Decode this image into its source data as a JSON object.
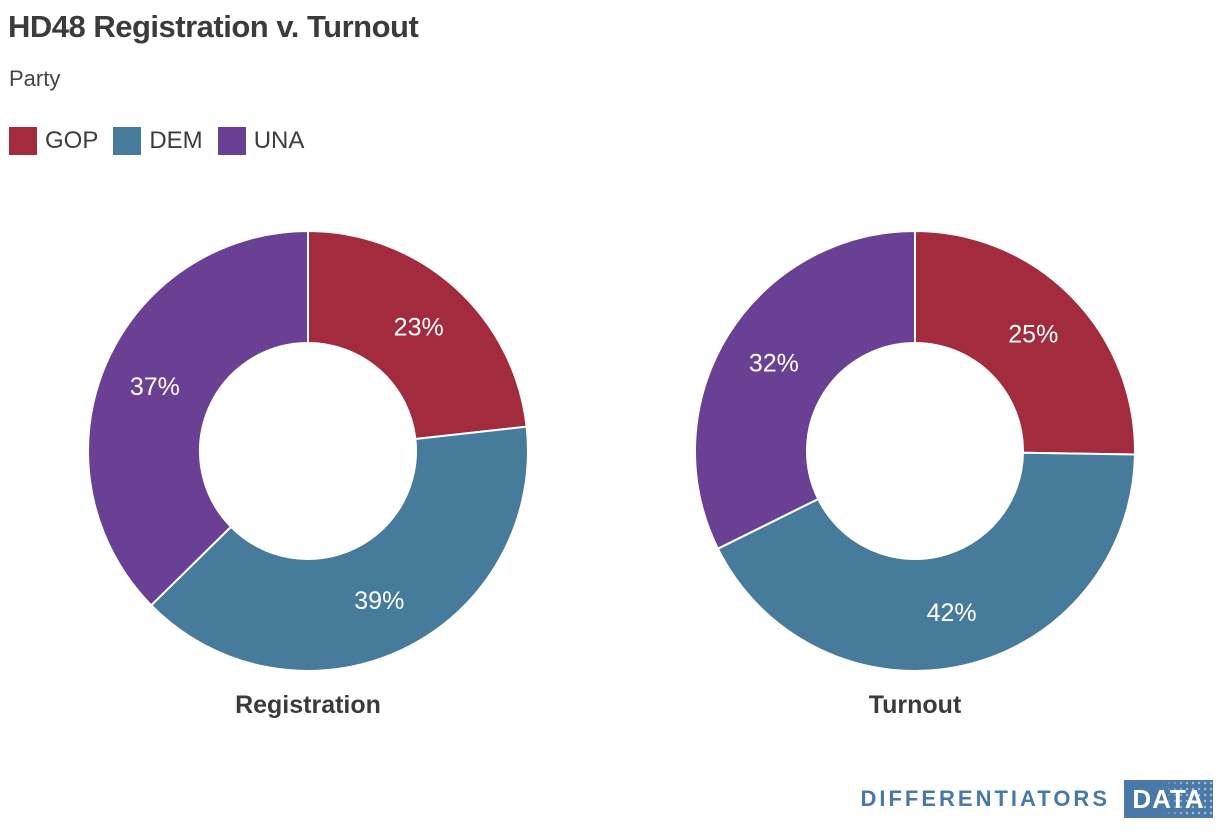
{
  "header": {
    "title": "HD48 Registration v. Turnout"
  },
  "legend": {
    "title": "Party",
    "items": [
      {
        "label": "GOP",
        "color": "#a22c3d"
      },
      {
        "label": "DEM",
        "color": "#477b9c"
      },
      {
        "label": "UNA",
        "color": "#6a4094"
      }
    ]
  },
  "chart_data": [
    {
      "type": "pie",
      "variant": "donut",
      "title": "Registration",
      "categories": [
        "GOP",
        "DEM",
        "UNA"
      ],
      "values": [
        23,
        39,
        37
      ],
      "labels": [
        "23%",
        "39%",
        "37%"
      ],
      "colors": [
        "#a22c3d",
        "#477b9c",
        "#6a4094"
      ],
      "start_angle_deg": 0,
      "direction": "clockwise",
      "hole_ratio": 0.49,
      "legend_position": "top-left"
    },
    {
      "type": "pie",
      "variant": "donut",
      "title": "Turnout",
      "categories": [
        "GOP",
        "DEM",
        "UNA"
      ],
      "values": [
        25,
        42,
        32
      ],
      "labels": [
        "25%",
        "42%",
        "32%"
      ],
      "colors": [
        "#a22c3d",
        "#477b9c",
        "#6a4094"
      ],
      "start_angle_deg": 0,
      "direction": "clockwise",
      "hole_ratio": 0.49,
      "legend_position": "top-left"
    }
  ],
  "footer": {
    "brand_text": "DIFFERENTIATORS",
    "brand_badge": "DATA",
    "brand_color": "#4a79a7"
  }
}
